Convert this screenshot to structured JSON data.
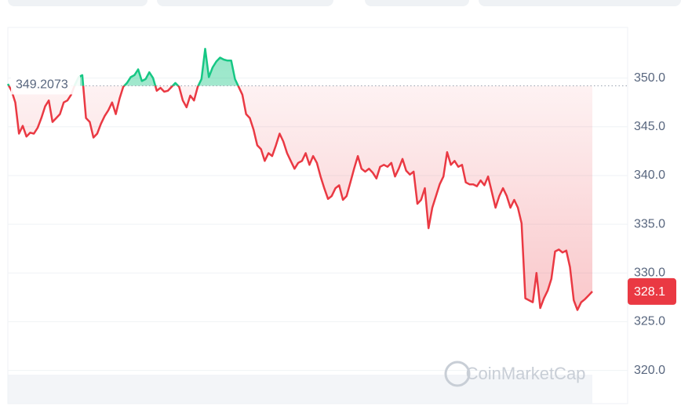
{
  "chart_data": {
    "type": "line",
    "color": "#ea3943",
    "up_color": "#16c784",
    "values": [
      349.4,
      348.7,
      347.5,
      344.3,
      345.1,
      344.0,
      344.4,
      344.3,
      344.9,
      345.9,
      347.1,
      347.7,
      345.5,
      345.9,
      346.3,
      347.5,
      347.7,
      348.3,
      349.3,
      350.1,
      350.3,
      345.9,
      345.5,
      343.9,
      344.3,
      345.3,
      346.1,
      346.7,
      347.5,
      346.3,
      347.9,
      349.1,
      349.5,
      350.1,
      350.3,
      350.9,
      349.7,
      349.9,
      350.6,
      350.0,
      348.7,
      349.0,
      348.6,
      348.7,
      349.1,
      349.5,
      349.1,
      347.7,
      347.0,
      348.2,
      347.7,
      349.1,
      349.9,
      353.0,
      350.1,
      351.1,
      351.7,
      352.1,
      351.9,
      351.8,
      351.8,
      349.9,
      349.1,
      348.3,
      346.3,
      345.9,
      344.7,
      343.1,
      342.7,
      341.5,
      342.3,
      342.0,
      343.1,
      344.3,
      343.5,
      342.3,
      341.5,
      340.7,
      341.3,
      341.5,
      342.3,
      341.1,
      342.0,
      341.3,
      339.9,
      338.7,
      337.6,
      337.9,
      338.7,
      339.0,
      337.5,
      337.9,
      339.3,
      340.7,
      342.0,
      340.7,
      340.4,
      340.7,
      340.3,
      339.7,
      340.9,
      341.1,
      340.9,
      341.3,
      339.9,
      340.7,
      341.7,
      340.5,
      340.1,
      340.4,
      337.1,
      337.5,
      338.7,
      334.6,
      336.7,
      337.9,
      339.1,
      339.9,
      342.4,
      341.1,
      341.5,
      340.9,
      341.1,
      339.3,
      339.1,
      339.1,
      338.9,
      339.5,
      339.0,
      339.9,
      338.3,
      336.7,
      337.9,
      338.7,
      337.9,
      336.7,
      337.5,
      336.7,
      335.1,
      327.4,
      327.2,
      327.0,
      330.0,
      326.4,
      327.4,
      328.2,
      329.4,
      332.2,
      332.4,
      332.1,
      332.3,
      330.6,
      327.2,
      326.2,
      327.0,
      327.3,
      327.7,
      328.1
    ],
    "baseline": 349.2073,
    "current_price": 328.1,
    "ylim": [
      318.6,
      355.2
    ],
    "yticks": [
      {
        "value": 320,
        "label": "320.0"
      },
      {
        "value": 325,
        "label": "325.0"
      },
      {
        "value": 330,
        "label": "330.0"
      },
      {
        "value": 335,
        "label": "335.0"
      },
      {
        "value": 340,
        "label": "340.0"
      },
      {
        "value": 345,
        "label": "345.0"
      },
      {
        "value": 350,
        "label": "350.0"
      }
    ],
    "grid": true,
    "watermark": "CoinMarketCap"
  }
}
